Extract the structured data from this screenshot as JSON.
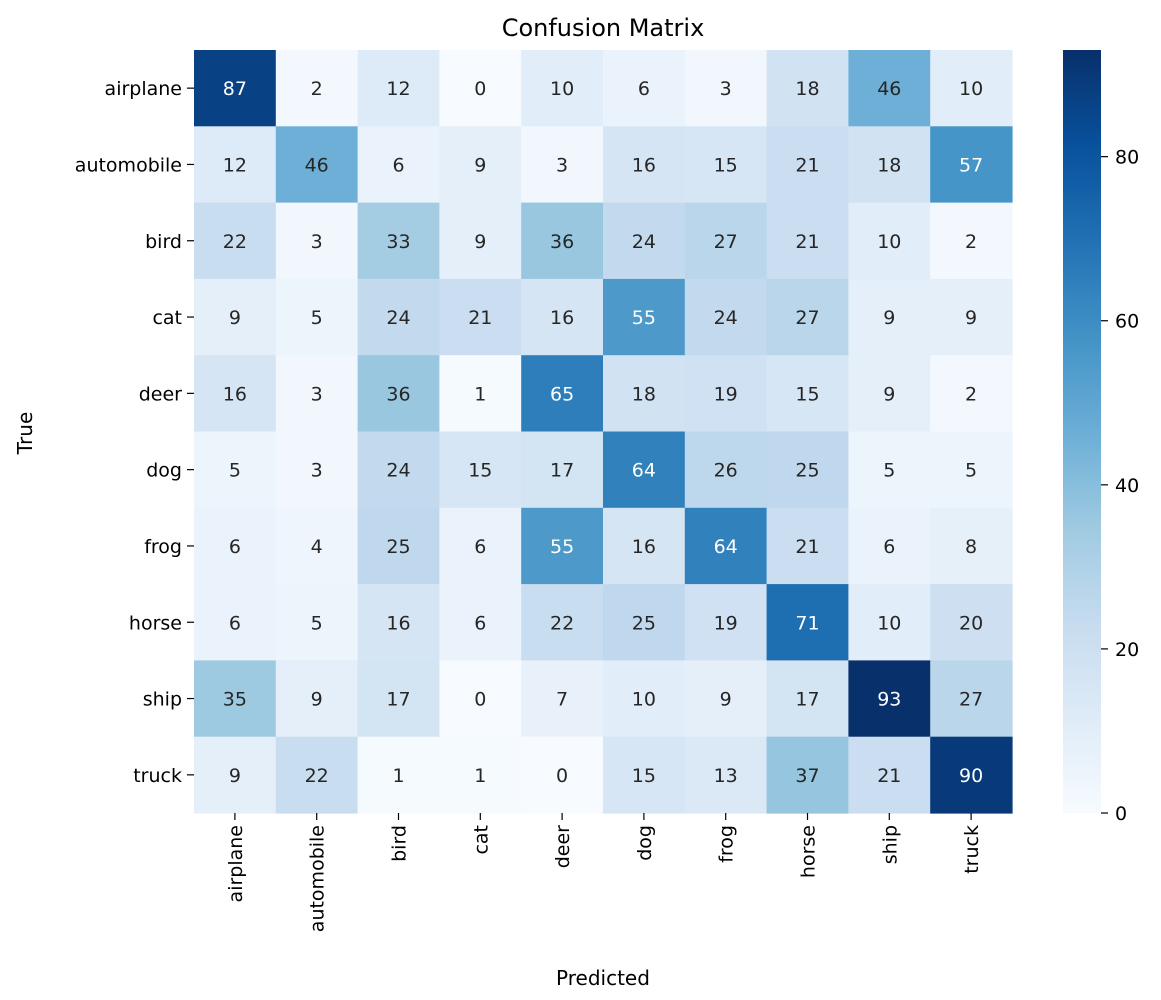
{
  "chart_data": {
    "type": "heatmap",
    "title": "Confusion Matrix",
    "xlabel": "Predicted",
    "ylabel": "True",
    "row_labels": [
      "airplane",
      "automobile",
      "bird",
      "cat",
      "deer",
      "dog",
      "frog",
      "horse",
      "ship",
      "truck"
    ],
    "col_labels": [
      "airplane",
      "automobile",
      "bird",
      "cat",
      "deer",
      "dog",
      "frog",
      "horse",
      "ship",
      "truck"
    ],
    "values": [
      [
        87,
        2,
        12,
        0,
        10,
        6,
        3,
        18,
        46,
        10
      ],
      [
        12,
        46,
        6,
        9,
        3,
        16,
        15,
        21,
        18,
        57
      ],
      [
        22,
        3,
        33,
        9,
        36,
        24,
        27,
        21,
        10,
        2
      ],
      [
        9,
        5,
        24,
        21,
        16,
        55,
        24,
        27,
        9,
        9
      ],
      [
        16,
        3,
        36,
        1,
        65,
        18,
        19,
        15,
        9,
        2
      ],
      [
        5,
        3,
        24,
        15,
        17,
        64,
        26,
        25,
        5,
        5
      ],
      [
        6,
        4,
        25,
        6,
        55,
        16,
        64,
        21,
        6,
        8
      ],
      [
        6,
        5,
        16,
        6,
        22,
        25,
        19,
        71,
        10,
        20
      ],
      [
        35,
        9,
        17,
        0,
        7,
        10,
        9,
        17,
        93,
        27
      ],
      [
        9,
        22,
        1,
        1,
        0,
        15,
        13,
        37,
        21,
        90
      ]
    ],
    "colormap": "Blues",
    "colorbar": {
      "min": 0,
      "max": 93,
      "ticks": [
        0,
        20,
        40,
        60,
        80
      ]
    },
    "grid": false
  }
}
